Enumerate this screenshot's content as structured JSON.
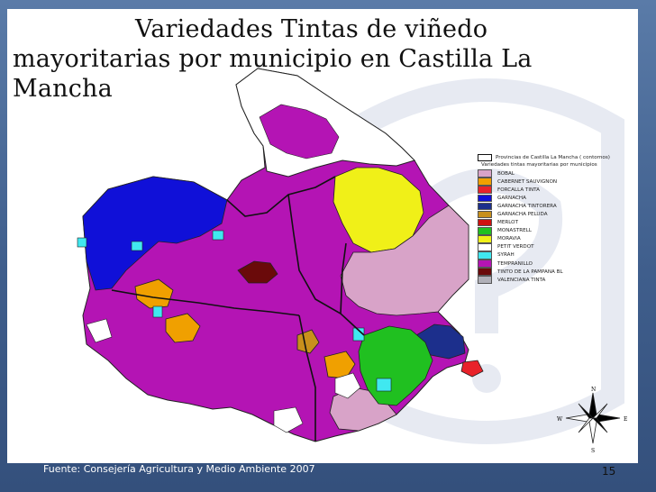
{
  "slide": {
    "title_line1": "Variedades Tintas de viñedo",
    "title_line2": "mayoritarias por municipio en Castilla La Mancha",
    "source": "Fuente: Consejería Agricultura y Medio Ambiente 2007",
    "page_number": "15"
  },
  "legend": {
    "province_label": "Provincias de Castilla La Mancha  ( contornos)",
    "subtitle": "Variedades tintas mayoritarias por municipios",
    "items": [
      {
        "label": "BOBAL",
        "color": "#d8a3c8"
      },
      {
        "label": "CABERNET SAUVIGNON",
        "color": "#f0a000"
      },
      {
        "label": "FORCALLA TINTA",
        "color": "#e8222a"
      },
      {
        "label": "GARNACHA",
        "color": "#1010d8"
      },
      {
        "label": "GARNACHA TINTORERA",
        "color": "#1c2f8c"
      },
      {
        "label": "GARNACHA PELUDA",
        "color": "#c8901c"
      },
      {
        "label": "MERLOT",
        "color": "#d01010"
      },
      {
        "label": "MONASTRELL",
        "color": "#20c020"
      },
      {
        "label": "MORAVIA",
        "color": "#f0f018"
      },
      {
        "label": "PETIT VERDOT",
        "color": "#ffffff"
      },
      {
        "label": "SYRAH",
        "color": "#40e8f0"
      },
      {
        "label": "TEMPRANILLO",
        "color": "#b414b4"
      },
      {
        "label": "TINTO DE LA PAMPANA BL",
        "color": "#6a0a0a"
      },
      {
        "label": "VALENCIANA TINTA",
        "color": "#b0b0b8"
      }
    ]
  },
  "compass": {
    "north": "N",
    "south": "S",
    "east": "E",
    "west": "W"
  }
}
